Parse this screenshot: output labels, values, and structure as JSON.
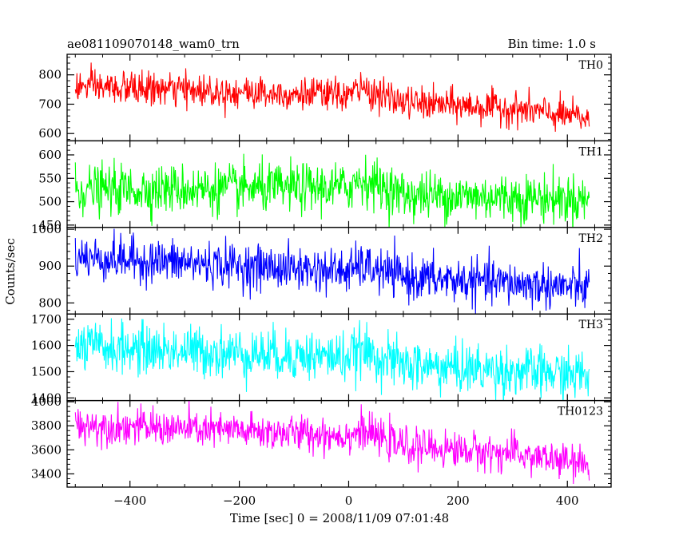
{
  "chart_data": {
    "type": "line",
    "title": "ae081109070148_wam0_trn",
    "subtitle": "Bin time: 1.0 s",
    "xlabel": "Time [sec] 0 = 2008/11/09 07:01:48",
    "ylabel": "Counts/sec",
    "xlim": [
      -515,
      480
    ],
    "x_ticks": [
      -400,
      -200,
      0,
      200,
      400
    ],
    "x_tick_labels": [
      "−400",
      "−200",
      "0",
      "200",
      "400"
    ],
    "x_range": [
      -500,
      440
    ],
    "panels": [
      {
        "name": "TH0",
        "color": "#ff0000",
        "ylim": [
          575,
          870
        ],
        "y_ticks": [
          600,
          700,
          800
        ],
        "y_tick_labels": [
          "600",
          "700",
          "800"
        ],
        "trend": [
          [
            -500,
            760
          ],
          [
            0,
            730
          ],
          [
            20,
            755
          ],
          [
            100,
            705
          ],
          [
            300,
            685
          ],
          [
            440,
            650
          ]
        ],
        "noise": 28
      },
      {
        "name": "TH1",
        "color": "#00ff00",
        "ylim": [
          445,
          630
        ],
        "y_ticks": [
          450,
          500,
          550,
          600
        ],
        "y_tick_labels": [
          "450",
          "500",
          "550",
          "600"
        ],
        "trend": [
          [
            -500,
            525
          ],
          [
            0,
            530
          ],
          [
            20,
            550
          ],
          [
            100,
            515
          ],
          [
            440,
            505
          ]
        ],
        "noise": 26
      },
      {
        "name": "TH2",
        "color": "#0000ff",
        "ylim": [
          770,
          1005
        ],
        "y_ticks": [
          800,
          900,
          1000
        ],
        "y_tick_labels": [
          "800",
          "900",
          "1000"
        ],
        "trend": [
          [
            -500,
            925
          ],
          [
            0,
            885
          ],
          [
            20,
            900
          ],
          [
            100,
            870
          ],
          [
            440,
            840
          ]
        ],
        "noise": 30
      },
      {
        "name": "TH3",
        "color": "#00ffff",
        "ylim": [
          1390,
          1720
        ],
        "y_ticks": [
          1400,
          1500,
          1600,
          1700
        ],
        "y_tick_labels": [
          "1400",
          "1500",
          "1600",
          "1700"
        ],
        "trend": [
          [
            -500,
            1595
          ],
          [
            0,
            1555
          ],
          [
            20,
            1580
          ],
          [
            100,
            1525
          ],
          [
            440,
            1485
          ]
        ],
        "noise": 48
      },
      {
        "name": "TH0123",
        "color": "#ff00ff",
        "ylim": [
          3290,
          4010
        ],
        "y_ticks": [
          3400,
          3600,
          3800,
          4000
        ],
        "y_tick_labels": [
          "3400",
          "3600",
          "3800",
          "4000"
        ],
        "trend": [
          [
            -500,
            3810
          ],
          [
            0,
            3720
          ],
          [
            20,
            3760
          ],
          [
            100,
            3630
          ],
          [
            300,
            3570
          ],
          [
            440,
            3470
          ]
        ],
        "noise": 75
      }
    ]
  }
}
